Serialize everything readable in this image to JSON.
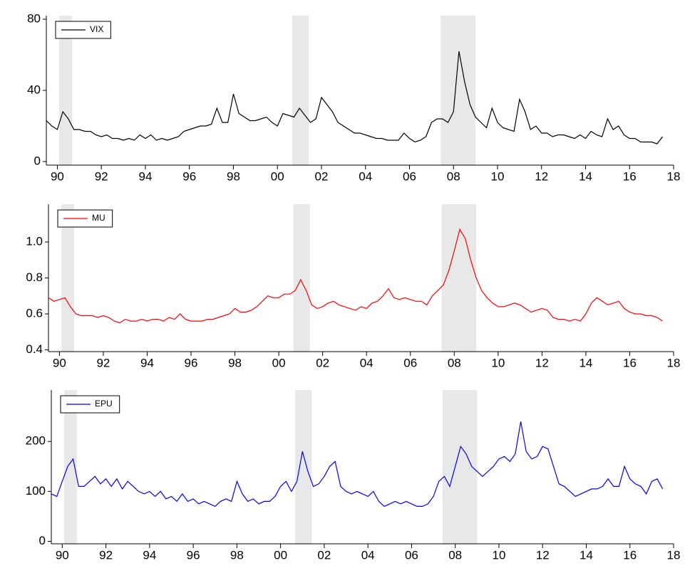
{
  "chart_data": [
    {
      "type": "line",
      "x": [
        1990,
        1990.25,
        1990.5,
        1990.75,
        1991,
        1991.25,
        1991.5,
        1991.75,
        1992,
        1992.25,
        1992.5,
        1992.75,
        1993,
        1993.25,
        1993.5,
        1993.75,
        1994,
        1994.25,
        1994.5,
        1994.75,
        1995,
        1995.25,
        1995.5,
        1995.75,
        1996,
        1996.25,
        1996.5,
        1996.75,
        1997,
        1997.25,
        1997.5,
        1997.75,
        1998,
        1998.25,
        1998.5,
        1998.75,
        1999,
        1999.25,
        1999.5,
        1999.75,
        2000,
        2000.25,
        2000.5,
        2000.75,
        2001,
        2001.25,
        2001.5,
        2001.75,
        2002,
        2002.25,
        2002.5,
        2002.75,
        2003,
        2003.25,
        2003.5,
        2003.75,
        2004,
        2004.25,
        2004.5,
        2004.75,
        2005,
        2005.25,
        2005.5,
        2005.75,
        2006,
        2006.25,
        2006.5,
        2006.75,
        2007,
        2007.25,
        2007.5,
        2007.75,
        2008,
        2008.25,
        2008.5,
        2008.75,
        2009,
        2009.25,
        2009.5,
        2009.75,
        2010,
        2010.25,
        2010.5,
        2010.75,
        2011,
        2011.25,
        2011.5,
        2011.75,
        2012,
        2012.25,
        2012.5,
        2012.75,
        2013,
        2013.25,
        2013.5,
        2013.75,
        2014,
        2014.25,
        2014.5,
        2014.75,
        2015,
        2015.25,
        2015.5,
        2015.75,
        2016,
        2016.25,
        2016.5,
        2016.75,
        2017,
        2017.25,
        2017.5,
        2017.75,
        2018
      ],
      "series": [
        {
          "name": "VIX",
          "color": "#000000",
          "values": [
            23,
            20,
            18,
            28,
            24,
            18,
            18,
            17,
            17,
            15,
            14,
            15,
            13,
            13,
            12,
            13,
            12,
            15,
            13,
            15,
            12,
            13,
            12,
            13,
            14,
            17,
            18,
            19,
            20,
            20,
            21,
            30,
            22,
            22,
            38,
            27,
            25,
            23,
            23,
            24,
            25,
            22,
            20,
            27,
            26,
            25,
            30,
            26,
            22,
            24,
            36,
            32,
            28,
            22,
            20,
            18,
            16,
            16,
            15,
            14,
            13,
            13,
            12,
            12,
            12,
            16,
            13,
            11,
            12,
            14,
            22,
            24,
            24,
            22,
            28,
            62,
            45,
            32,
            25,
            22,
            19,
            30,
            22,
            19,
            18,
            17,
            35,
            28,
            18,
            20,
            16,
            16,
            14,
            15,
            15,
            14,
            13,
            15,
            13,
            17,
            15,
            14,
            24,
            18,
            20,
            15,
            13,
            13,
            11,
            11,
            11,
            10,
            14
          ]
        }
      ],
      "xlim": [
        1990,
        2018.5
      ],
      "xticks": [
        {
          "value": 1990.5,
          "label": "90"
        },
        {
          "value": 1992.5,
          "label": "92"
        },
        {
          "value": 1994.5,
          "label": "94"
        },
        {
          "value": 1996.5,
          "label": "96"
        },
        {
          "value": 1998.5,
          "label": "98"
        },
        {
          "value": 2000.5,
          "label": "00"
        },
        {
          "value": 2002.5,
          "label": "02"
        },
        {
          "value": 2004.5,
          "label": "04"
        },
        {
          "value": 2006.5,
          "label": "06"
        },
        {
          "value": 2008.5,
          "label": "08"
        },
        {
          "value": 2010.5,
          "label": "10"
        },
        {
          "value": 2012.5,
          "label": "12"
        },
        {
          "value": 2014.5,
          "label": "14"
        },
        {
          "value": 2016.5,
          "label": "16"
        },
        {
          "value": 2018.5,
          "label": "18"
        }
      ],
      "ylim": [
        -2,
        82
      ],
      "yticks": [
        0,
        40,
        80
      ],
      "shading": [
        [
          1990.58,
          1991.17
        ],
        [
          2001.17,
          2001.92
        ],
        [
          2007.92,
          2009.5
        ]
      ]
    },
    {
      "type": "line",
      "x": [
        1990,
        1990.25,
        1990.5,
        1990.75,
        1991,
        1991.25,
        1991.5,
        1991.75,
        1992,
        1992.25,
        1992.5,
        1992.75,
        1993,
        1993.25,
        1993.5,
        1993.75,
        1994,
        1994.25,
        1994.5,
        1994.75,
        1995,
        1995.25,
        1995.5,
        1995.75,
        1996,
        1996.25,
        1996.5,
        1996.75,
        1997,
        1997.25,
        1997.5,
        1997.75,
        1998,
        1998.25,
        1998.5,
        1998.75,
        1999,
        1999.25,
        1999.5,
        1999.75,
        2000,
        2000.25,
        2000.5,
        2000.75,
        2001,
        2001.25,
        2001.5,
        2001.75,
        2002,
        2002.25,
        2002.5,
        2002.75,
        2003,
        2003.25,
        2003.5,
        2003.75,
        2004,
        2004.25,
        2004.5,
        2004.75,
        2005,
        2005.25,
        2005.5,
        2005.75,
        2006,
        2006.25,
        2006.5,
        2006.75,
        2007,
        2007.25,
        2007.5,
        2007.75,
        2008,
        2008.25,
        2008.5,
        2008.75,
        2009,
        2009.25,
        2009.5,
        2009.75,
        2010,
        2010.25,
        2010.5,
        2010.75,
        2011,
        2011.25,
        2011.5,
        2011.75,
        2012,
        2012.25,
        2012.5,
        2012.75,
        2013,
        2013.25,
        2013.5,
        2013.75,
        2014,
        2014.25,
        2014.5,
        2014.75,
        2015,
        2015.25,
        2015.5,
        2015.75,
        2016,
        2016.25,
        2016.5,
        2016.75,
        2017,
        2017.25,
        2017.5,
        2017.75,
        2018
      ],
      "series": [
        {
          "name": "MU",
          "color": "#ff0000",
          "values": [
            0.69,
            0.67,
            0.68,
            0.69,
            0.64,
            0.6,
            0.59,
            0.59,
            0.59,
            0.58,
            0.59,
            0.58,
            0.56,
            0.55,
            0.57,
            0.56,
            0.56,
            0.57,
            0.56,
            0.57,
            0.57,
            0.56,
            0.58,
            0.57,
            0.6,
            0.57,
            0.56,
            0.56,
            0.56,
            0.57,
            0.57,
            0.58,
            0.59,
            0.6,
            0.63,
            0.61,
            0.61,
            0.62,
            0.64,
            0.67,
            0.7,
            0.69,
            0.69,
            0.71,
            0.71,
            0.73,
            0.79,
            0.73,
            0.65,
            0.63,
            0.64,
            0.66,
            0.67,
            0.65,
            0.64,
            0.63,
            0.62,
            0.64,
            0.63,
            0.66,
            0.67,
            0.7,
            0.74,
            0.69,
            0.68,
            0.69,
            0.68,
            0.67,
            0.67,
            0.65,
            0.7,
            0.73,
            0.76,
            0.84,
            0.95,
            1.07,
            1.02,
            0.9,
            0.8,
            0.73,
            0.69,
            0.66,
            0.64,
            0.64,
            0.65,
            0.66,
            0.65,
            0.63,
            0.61,
            0.62,
            0.63,
            0.62,
            0.58,
            0.57,
            0.57,
            0.56,
            0.57,
            0.56,
            0.6,
            0.66,
            0.69,
            0.67,
            0.65,
            0.66,
            0.67,
            0.63,
            0.61,
            0.6,
            0.6,
            0.59,
            0.59,
            0.58,
            0.56
          ]
        }
      ],
      "xlim": [
        1990,
        2018.5
      ],
      "xticks": [
        {
          "value": 1990.5,
          "label": "90"
        },
        {
          "value": 1992.5,
          "label": "92"
        },
        {
          "value": 1994.5,
          "label": "94"
        },
        {
          "value": 1996.5,
          "label": "96"
        },
        {
          "value": 1998.5,
          "label": "98"
        },
        {
          "value": 2000.5,
          "label": "00"
        },
        {
          "value": 2002.5,
          "label": "02"
        },
        {
          "value": 2004.5,
          "label": "04"
        },
        {
          "value": 2006.5,
          "label": "06"
        },
        {
          "value": 2008.5,
          "label": "08"
        },
        {
          "value": 2010.5,
          "label": "10"
        },
        {
          "value": 2012.5,
          "label": "12"
        },
        {
          "value": 2014.5,
          "label": "14"
        },
        {
          "value": 2016.5,
          "label": "16"
        },
        {
          "value": 2018.5,
          "label": "18"
        }
      ],
      "ylim": [
        0.39,
        1.21
      ],
      "yticks": [
        0.4,
        0.6,
        0.8,
        {
          "value": 1,
          "label": "1.0"
        }
      ],
      "shading": [
        [
          1990.58,
          1991.17
        ],
        [
          2001.17,
          2001.92
        ],
        [
          2007.92,
          2009.5
        ]
      ]
    },
    {
      "type": "line",
      "x": [
        1990,
        1990.25,
        1990.5,
        1990.75,
        1991,
        1991.25,
        1991.5,
        1991.75,
        1992,
        1992.25,
        1992.5,
        1992.75,
        1993,
        1993.25,
        1993.5,
        1993.75,
        1994,
        1994.25,
        1994.5,
        1994.75,
        1995,
        1995.25,
        1995.5,
        1995.75,
        1996,
        1996.25,
        1996.5,
        1996.75,
        1997,
        1997.25,
        1997.5,
        1997.75,
        1998,
        1998.25,
        1998.5,
        1998.75,
        1999,
        1999.25,
        1999.5,
        1999.75,
        2000,
        2000.25,
        2000.5,
        2000.75,
        2001,
        2001.25,
        2001.5,
        2001.75,
        2002,
        2002.25,
        2002.5,
        2002.75,
        2003,
        2003.25,
        2003.5,
        2003.75,
        2004,
        2004.25,
        2004.5,
        2004.75,
        2005,
        2005.25,
        2005.5,
        2005.75,
        2006,
        2006.25,
        2006.5,
        2006.75,
        2007,
        2007.25,
        2007.5,
        2007.75,
        2008,
        2008.25,
        2008.5,
        2008.75,
        2009,
        2009.25,
        2009.5,
        2009.75,
        2010,
        2010.25,
        2010.5,
        2010.75,
        2011,
        2011.25,
        2011.5,
        2011.75,
        2012,
        2012.25,
        2012.5,
        2012.75,
        2013,
        2013.25,
        2013.5,
        2013.75,
        2014,
        2014.25,
        2014.5,
        2014.75,
        2015,
        2015.25,
        2015.5,
        2015.75,
        2016,
        2016.25,
        2016.5,
        2016.75,
        2017,
        2017.25,
        2017.5,
        2017.75,
        2018
      ],
      "series": [
        {
          "name": "EPU",
          "color": "#0000ff",
          "values": [
            95,
            90,
            120,
            150,
            165,
            110,
            110,
            120,
            130,
            115,
            125,
            110,
            125,
            105,
            120,
            110,
            100,
            95,
            100,
            90,
            100,
            85,
            90,
            80,
            95,
            80,
            85,
            75,
            80,
            75,
            70,
            80,
            85,
            80,
            120,
            95,
            80,
            85,
            75,
            80,
            80,
            90,
            110,
            120,
            100,
            120,
            180,
            140,
            110,
            115,
            130,
            150,
            160,
            110,
            100,
            95,
            100,
            95,
            90,
            100,
            80,
            70,
            75,
            80,
            75,
            80,
            75,
            70,
            70,
            75,
            90,
            120,
            130,
            110,
            150,
            190,
            175,
            150,
            140,
            130,
            140,
            150,
            165,
            170,
            160,
            175,
            240,
            180,
            165,
            170,
            190,
            185,
            150,
            115,
            110,
            100,
            90,
            95,
            100,
            105,
            105,
            110,
            125,
            110,
            110,
            150,
            125,
            115,
            110,
            95,
            120,
            125,
            105
          ]
        }
      ],
      "xlim": [
        1990,
        2018.5
      ],
      "xticks": [
        {
          "value": 1990.5,
          "label": "90"
        },
        {
          "value": 1992.5,
          "label": "92"
        },
        {
          "value": 1994.5,
          "label": "94"
        },
        {
          "value": 1996.5,
          "label": "96"
        },
        {
          "value": 1998.5,
          "label": "98"
        },
        {
          "value": 2000.5,
          "label": "00"
        },
        {
          "value": 2002.5,
          "label": "02"
        },
        {
          "value": 2004.5,
          "label": "04"
        },
        {
          "value": 2006.5,
          "label": "06"
        },
        {
          "value": 2008.5,
          "label": "08"
        },
        {
          "value": 2010.5,
          "label": "10"
        },
        {
          "value": 2012.5,
          "label": "12"
        },
        {
          "value": 2014.5,
          "label": "14"
        },
        {
          "value": 2016.5,
          "label": "16"
        },
        {
          "value": 2018.5,
          "label": "18"
        }
      ],
      "ylim": [
        -5,
        303
      ],
      "yticks": [
        0,
        100,
        200
      ],
      "shading": [
        [
          1990.58,
          1991.17
        ],
        [
          2001.17,
          2001.92
        ],
        [
          2007.92,
          2009.5
        ]
      ]
    }
  ]
}
